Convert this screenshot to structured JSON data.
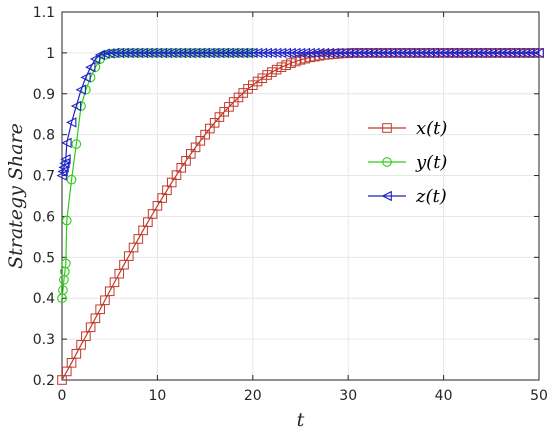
{
  "chart_data": {
    "type": "line",
    "title": "",
    "xlabel": "t",
    "ylabel": "Strategy Share",
    "xlim": [
      0,
      50
    ],
    "ylim": [
      0.2,
      1.1
    ],
    "xticks": [
      "0",
      "10",
      "20",
      "30",
      "40",
      "50"
    ],
    "yticks": [
      "0.2",
      "0.3",
      "0.4",
      "0.5",
      "0.6",
      "0.7",
      "0.8",
      "0.9",
      "1",
      "1.1"
    ],
    "grid": true,
    "legend_position": "right-middle",
    "series": [
      {
        "name": "x(t)",
        "color": "#c0392b",
        "marker": "square",
        "x": [
          0,
          0.5,
          1,
          1.5,
          2,
          2.5,
          3,
          3.5,
          4,
          4.5,
          5,
          5.5,
          6,
          6.5,
          7,
          7.5,
          8,
          8.5,
          9,
          9.5,
          10,
          10.5,
          11,
          11.5,
          12,
          12.5,
          13,
          13.5,
          14,
          14.5,
          15,
          15.5,
          16,
          16.5,
          17,
          17.5,
          18,
          18.5,
          19,
          19.5,
          20,
          20.5,
          21,
          21.5,
          22,
          22.5,
          23,
          23.5,
          24,
          24.5,
          25,
          25.5,
          26,
          26.5,
          27,
          27.5,
          28,
          28.5,
          29,
          29.5,
          30,
          30.5,
          31,
          31.5,
          32,
          32.5,
          33,
          33.5,
          34,
          34.5,
          35,
          35.5,
          36,
          36.5,
          37,
          37.5,
          38,
          38.5,
          39,
          39.5,
          40,
          40.5,
          41,
          41.5,
          42,
          42.5,
          43,
          43.5,
          44,
          44.5,
          45,
          45.5,
          46,
          46.5,
          47,
          47.5,
          48,
          48.5,
          49,
          49.5,
          50
        ],
        "values": [
          0.2,
          0.221,
          0.242,
          0.264,
          0.286,
          0.307,
          0.329,
          0.351,
          0.373,
          0.395,
          0.417,
          0.439,
          0.46,
          0.482,
          0.503,
          0.524,
          0.545,
          0.566,
          0.586,
          0.606,
          0.626,
          0.645,
          0.664,
          0.683,
          0.701,
          0.719,
          0.736,
          0.753,
          0.769,
          0.785,
          0.8,
          0.815,
          0.829,
          0.843,
          0.856,
          0.868,
          0.88,
          0.891,
          0.902,
          0.912,
          0.921,
          0.93,
          0.938,
          0.946,
          0.953,
          0.959,
          0.965,
          0.97,
          0.975,
          0.979,
          0.983,
          0.986,
          0.989,
          0.991,
          0.993,
          0.995,
          0.996,
          0.997,
          0.998,
          0.999,
          0.999,
          1.0,
          1.0,
          1.0,
          1.0,
          1.0,
          1.0,
          1.0,
          1.0,
          1.0,
          1.0,
          1.0,
          1.0,
          1.0,
          1.0,
          1.0,
          1.0,
          1.0,
          1.0,
          1.0,
          1.0,
          1.0,
          1.0,
          1.0,
          1.0,
          1.0,
          1.0,
          1.0,
          1.0,
          1.0,
          1.0,
          1.0,
          1.0,
          1.0,
          1.0,
          1.0,
          1.0,
          1.0,
          1.0,
          1.0,
          1.0
        ]
      },
      {
        "name": "y(t)",
        "color": "#2ecc18",
        "marker": "circle",
        "x": [
          0,
          0.1,
          0.2,
          0.3,
          0.4,
          0.5,
          1,
          1.5,
          2,
          2.5,
          3,
          3.5,
          4,
          4.5,
          5,
          5.5,
          6,
          6.5,
          7,
          7.5,
          8,
          8.5,
          9,
          9.5,
          10,
          10.5,
          11,
          11.5,
          12,
          12.5,
          13,
          13.5,
          14,
          14.5,
          15,
          15.5,
          16,
          16.5,
          17,
          17.5,
          18,
          18.5,
          19,
          19.5,
          20
        ],
        "values": [
          0.4,
          0.42,
          0.445,
          0.465,
          0.485,
          0.59,
          0.69,
          0.777,
          0.87,
          0.91,
          0.94,
          0.965,
          0.985,
          0.995,
          0.998,
          0.999,
          1.0,
          1.0,
          1.0,
          1.0,
          1.0,
          1.0,
          1.0,
          1.0,
          1.0,
          1.0,
          1.0,
          1.0,
          1.0,
          1.0,
          1.0,
          1.0,
          1.0,
          1.0,
          1.0,
          1.0,
          1.0,
          1.0,
          1.0,
          1.0,
          1.0,
          1.0,
          1.0,
          1.0,
          1.0
        ]
      },
      {
        "name": "z(t)",
        "color": "#1f22c8",
        "marker": "triangle-left",
        "x": [
          0,
          0.1,
          0.2,
          0.3,
          0.4,
          0.5,
          1,
          1.5,
          2,
          2.5,
          3,
          3.5,
          4,
          4.5,
          5,
          5.5,
          6,
          6.5,
          7,
          7.5,
          8,
          8.5,
          9,
          9.5,
          10,
          10.5,
          11,
          11.5,
          12,
          12.5,
          13,
          13.5,
          14,
          14.5,
          15,
          15.5,
          16,
          16.5,
          17,
          17.5,
          18,
          18.5,
          19,
          19.5,
          20,
          20.5,
          21,
          21.5,
          22,
          22.5,
          23,
          23.5,
          24,
          24.5,
          25,
          25.5,
          26,
          26.5,
          27,
          27.5,
          28,
          28.5,
          29,
          29.5,
          30,
          30.5,
          31,
          31.5,
          32,
          32.5,
          33,
          33.5,
          34,
          34.5,
          35,
          35.5,
          36,
          36.5,
          37,
          37.5,
          38,
          38.5,
          39,
          39.5,
          40,
          40.5,
          41,
          41.5,
          42,
          42.5,
          43,
          43.5,
          44,
          44.5,
          45,
          45.5,
          46,
          46.5,
          47,
          47.5,
          48,
          48.5,
          49,
          49.5,
          50
        ],
        "values": [
          0.7,
          0.71,
          0.72,
          0.73,
          0.74,
          0.78,
          0.83,
          0.87,
          0.91,
          0.94,
          0.965,
          0.985,
          0.995,
          0.998,
          0.999,
          1.0,
          1.0,
          1.0,
          1.0,
          1.0,
          1.0,
          1.0,
          1.0,
          1.0,
          1.0,
          1.0,
          1.0,
          1.0,
          1.0,
          1.0,
          1.0,
          1.0,
          1.0,
          1.0,
          1.0,
          1.0,
          1.0,
          1.0,
          1.0,
          1.0,
          1.0,
          1.0,
          1.0,
          1.0,
          1.0,
          1.0,
          1.0,
          1.0,
          1.0,
          1.0,
          1.0,
          1.0,
          1.0,
          1.0,
          1.0,
          1.0,
          1.0,
          1.0,
          1.0,
          1.0,
          1.0,
          1.0,
          1.0,
          1.0,
          1.0,
          1.0,
          1.0,
          1.0,
          1.0,
          1.0,
          1.0,
          1.0,
          1.0,
          1.0,
          1.0,
          1.0,
          1.0,
          1.0,
          1.0,
          1.0,
          1.0,
          1.0,
          1.0,
          1.0,
          1.0,
          1.0,
          1.0,
          1.0,
          1.0,
          1.0,
          1.0,
          1.0,
          1.0,
          1.0,
          1.0,
          1.0,
          1.0,
          1.0,
          1.0,
          1.0,
          1.0,
          1.0,
          1.0,
          1.0,
          1.0
        ]
      }
    ]
  }
}
